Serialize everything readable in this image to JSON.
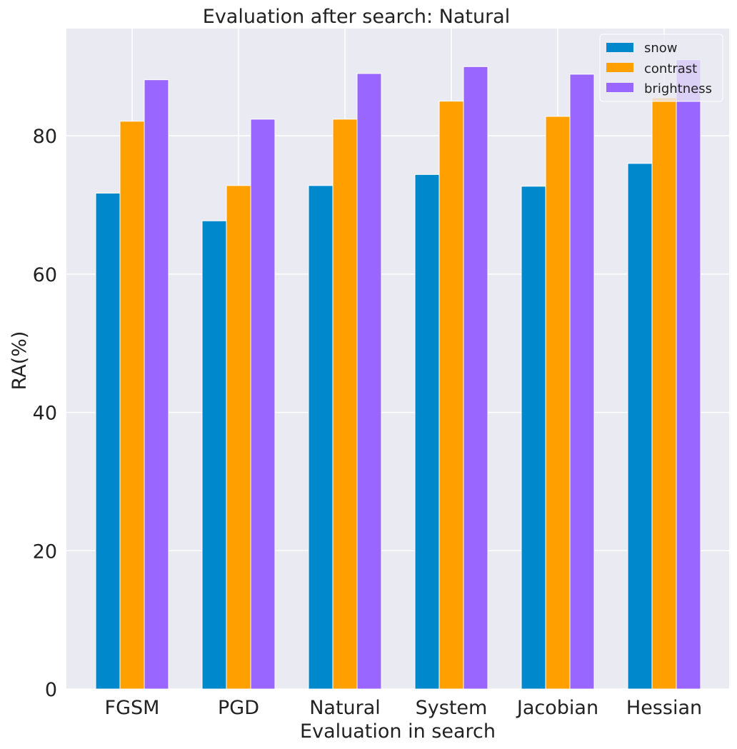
{
  "chart_data": {
    "type": "bar",
    "title": "Evaluation after search: Natural",
    "xlabel": "Evaluation in search",
    "ylabel": "RA(%)",
    "categories": [
      "FGSM",
      "PGD",
      "Natural",
      "System",
      "Jacobian",
      "Hessian"
    ],
    "yticks": [
      0,
      20,
      40,
      60,
      80
    ],
    "ylim": [
      0,
      95.5
    ],
    "grid": true,
    "legend_position": "top-right",
    "series": [
      {
        "name": "snow",
        "color": "#0088cc",
        "values": [
          71.7,
          67.7,
          72.8,
          74.4,
          72.7,
          76.0
        ]
      },
      {
        "name": "contrast",
        "color": "#ffa000",
        "values": [
          82.1,
          72.8,
          82.4,
          85.0,
          82.8,
          85.5
        ]
      },
      {
        "name": "brightness",
        "color": "#9966ff",
        "values": [
          88.1,
          82.4,
          89.0,
          90.0,
          88.9,
          91.0
        ]
      }
    ]
  }
}
